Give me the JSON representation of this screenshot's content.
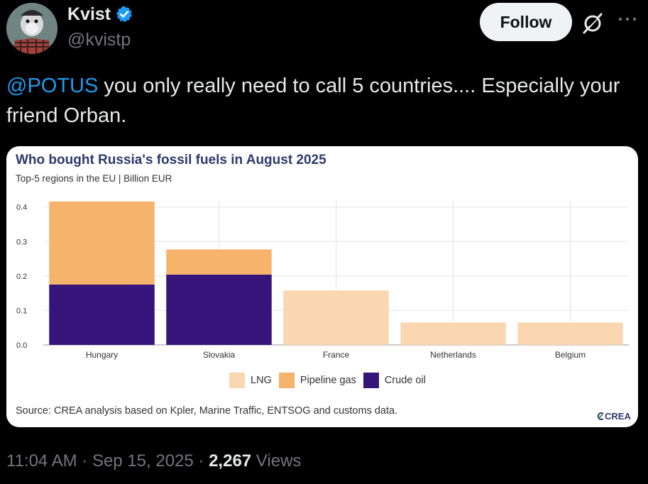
{
  "user": {
    "display_name": "Kvist",
    "handle": "@kvistp",
    "verified_icon": "verified-badge-icon"
  },
  "actions": {
    "follow_label": "Follow",
    "grok_icon": "grok-icon",
    "more_icon": "more-icon"
  },
  "tweet": {
    "mention": "@POTUS",
    "text": " you only really need to call 5 countries.... Especially your friend Orban."
  },
  "card": {
    "source": "Source: CREA analysis based on Kpler, Marine Traffic, ENTSOG and customs data.",
    "logo": "CREA"
  },
  "chart_data": {
    "type": "bar",
    "stacked": true,
    "title": "Who bought Russia's fossil fuels in August 2025",
    "subtitle": "Top-5 regions in the EU | Billion EUR",
    "categories": [
      "Hungary",
      "Slovakia",
      "France",
      "Netherlands",
      "Belgium"
    ],
    "series": [
      {
        "name": "LNG",
        "color": "#fad7b0",
        "values": [
          0,
          0,
          0.158,
          0.065,
          0.065
        ]
      },
      {
        "name": "Pipeline gas",
        "color": "#f6b36b",
        "values": [
          0.241,
          0.073,
          0,
          0,
          0
        ]
      },
      {
        "name": "Crude oil",
        "color": "#35157a",
        "values": [
          0.175,
          0.204,
          0,
          0,
          0
        ]
      }
    ],
    "stack_order": [
      "Crude oil",
      "Pipeline gas",
      "LNG"
    ],
    "ylim": [
      0,
      0.42
    ],
    "yticks": [
      0.0,
      0.1,
      0.2,
      0.3,
      0.4
    ],
    "ytick_labels": [
      "0.0",
      "0.1",
      "0.2",
      "0.3",
      "0.4"
    ],
    "grid": true,
    "legend_position": "bottom-center"
  },
  "meta": {
    "time": "11:04 AM",
    "sep1": " · ",
    "date": "Sep 15, 2025",
    "sep2": " · ",
    "views_count": "2,267",
    "views_label": " Views"
  }
}
